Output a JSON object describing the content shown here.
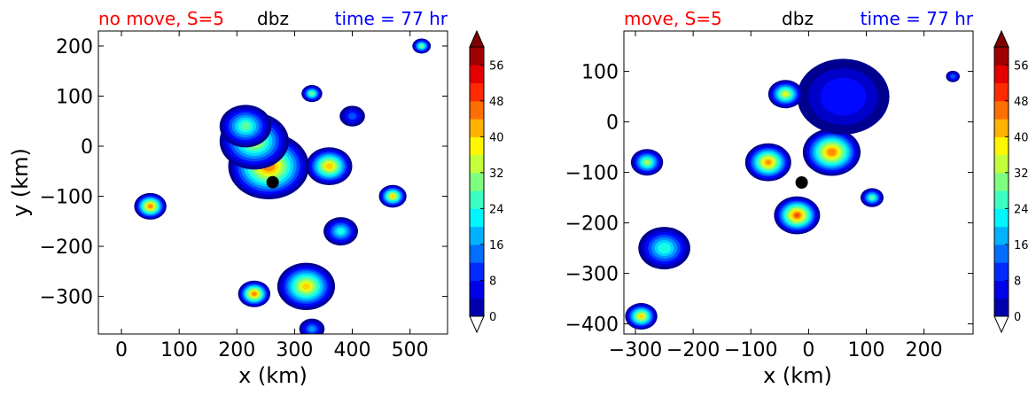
{
  "figure": {
    "colorbar": {
      "label_type": "dbz",
      "ticks": [
        0,
        8,
        16,
        24,
        32,
        40,
        48,
        56
      ],
      "range": [
        0,
        60
      ],
      "colormap": [
        "#00008f",
        "#0000ff",
        "#007fff",
        "#00ffff",
        "#7fff7f",
        "#ffff00",
        "#ff7f00",
        "#ff0000",
        "#7f0000"
      ]
    }
  },
  "chart_data": [
    {
      "type": "heatmap",
      "title_left": "no move, S=5",
      "title_center": "dbz",
      "title_right": "time = 77 hr",
      "title_left_color": "#ff0000",
      "title_right_color": "#0000ff",
      "xlabel": "x (km)",
      "ylabel": "y (km)",
      "xlim": [
        -40,
        565
      ],
      "ylim": [
        -375,
        230
      ],
      "xticks": [
        0,
        100,
        200,
        300,
        400,
        500
      ],
      "yticks": [
        200,
        100,
        0,
        -100,
        -200,
        -300
      ],
      "storm_center": [
        262,
        -72
      ],
      "features": [
        {
          "x": 255,
          "y": -40,
          "r": 70,
          "v": 46
        },
        {
          "x": 230,
          "y": 10,
          "r": 60,
          "v": 36
        },
        {
          "x": 215,
          "y": 40,
          "r": 45,
          "v": 28
        },
        {
          "x": 360,
          "y": -40,
          "r": 40,
          "v": 42
        },
        {
          "x": 330,
          "y": 105,
          "r": 18,
          "v": 30
        },
        {
          "x": 520,
          "y": 200,
          "r": 16,
          "v": 30
        },
        {
          "x": 50,
          "y": -120,
          "r": 28,
          "v": 46
        },
        {
          "x": 470,
          "y": -100,
          "r": 24,
          "v": 40
        },
        {
          "x": 320,
          "y": -280,
          "r": 50,
          "v": 40
        },
        {
          "x": 230,
          "y": -295,
          "r": 28,
          "v": 46
        },
        {
          "x": 380,
          "y": -170,
          "r": 30,
          "v": 24
        },
        {
          "x": 400,
          "y": 60,
          "r": 22,
          "v": 12
        },
        {
          "x": 330,
          "y": -365,
          "r": 22,
          "v": 16
        }
      ]
    },
    {
      "type": "heatmap",
      "title_left": "move, S=5",
      "title_center": "dbz",
      "title_right": "time = 77 hr",
      "title_left_color": "#ff0000",
      "title_right_color": "#0000ff",
      "xlabel": "x (km)",
      "ylabel": "",
      "xlim": [
        -320,
        285
      ],
      "ylim": [
        -420,
        180
      ],
      "xticks": [
        -300,
        -200,
        -100,
        0,
        100,
        200
      ],
      "yticks": [
        100,
        0,
        -100,
        -200,
        -300,
        -400
      ],
      "storm_center": [
        -12,
        -120
      ],
      "features": [
        {
          "x": 40,
          "y": -60,
          "r": 50,
          "v": 46
        },
        {
          "x": -70,
          "y": -80,
          "r": 40,
          "v": 44
        },
        {
          "x": -20,
          "y": -185,
          "r": 40,
          "v": 48
        },
        {
          "x": 60,
          "y": 50,
          "r": 80,
          "v": 10
        },
        {
          "x": -40,
          "y": 55,
          "r": 30,
          "v": 36
        },
        {
          "x": -280,
          "y": -80,
          "r": 28,
          "v": 32
        },
        {
          "x": -250,
          "y": -250,
          "r": 45,
          "v": 26
        },
        {
          "x": -290,
          "y": -385,
          "r": 28,
          "v": 40
        },
        {
          "x": 110,
          "y": -150,
          "r": 20,
          "v": 28
        },
        {
          "x": 250,
          "y": 90,
          "r": 12,
          "v": 14
        }
      ]
    }
  ]
}
